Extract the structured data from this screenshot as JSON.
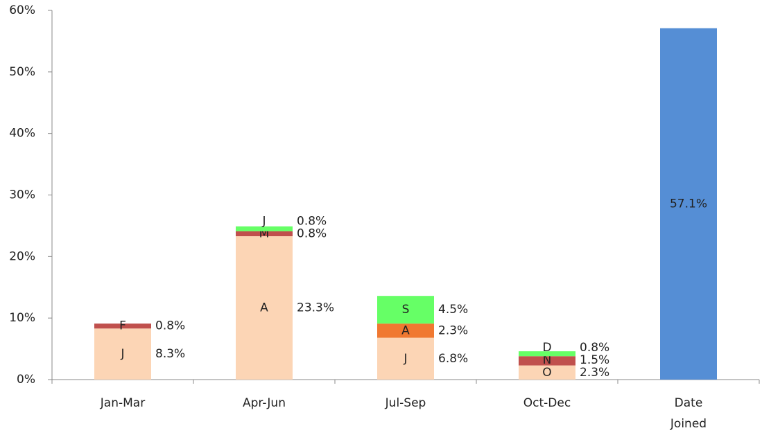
{
  "chart_data": {
    "type": "stacked-bar",
    "categories": [
      "Jan-Mar",
      "Apr-Jun",
      "Jul-Sep",
      "Oct-Dec",
      "Date Joined"
    ],
    "groups": [
      {
        "labels": [
          "J",
          "F"
        ],
        "values": [
          8.3,
          0.8
        ],
        "value_labels": [
          "8.3%",
          "0.8%"
        ],
        "colors": [
          "#fcd5b5",
          "#c0504d"
        ]
      },
      {
        "labels": [
          "A",
          "M",
          "J"
        ],
        "values": [
          23.3,
          0.8,
          0.8
        ],
        "value_labels": [
          "23.3%",
          "0.8%",
          "0.8%"
        ],
        "colors": [
          "#fcd5b5",
          "#c0504d",
          "#66ff66"
        ]
      },
      {
        "labels": [
          "J",
          "A",
          "S"
        ],
        "values": [
          6.8,
          2.3,
          4.5
        ],
        "value_labels": [
          "6.8%",
          "2.3%",
          "4.5%"
        ],
        "colors": [
          "#fcd5b5",
          "#f07830",
          "#66ff66"
        ]
      },
      {
        "labels": [
          "O",
          "N",
          "D"
        ],
        "values": [
          2.3,
          1.5,
          0.8
        ],
        "value_labels": [
          "2.3%",
          "1.5%",
          "0.8%"
        ],
        "colors": [
          "#fcd5b5",
          "#c0504d",
          "#66ff66"
        ]
      },
      {
        "values": [
          57.1
        ],
        "value_labels": [
          "57.1%"
        ],
        "colors": [
          "#558ed5"
        ]
      }
    ],
    "ylim": [
      0,
      60
    ],
    "yticks": [
      {
        "value": 0,
        "label": "0%"
      },
      {
        "value": 10,
        "label": "10%"
      },
      {
        "value": 20,
        "label": "20%"
      },
      {
        "value": 30,
        "label": "30%"
      },
      {
        "value": 40,
        "label": "40%"
      },
      {
        "value": 50,
        "label": "50%"
      },
      {
        "value": 60,
        "label": "60%"
      }
    ]
  }
}
